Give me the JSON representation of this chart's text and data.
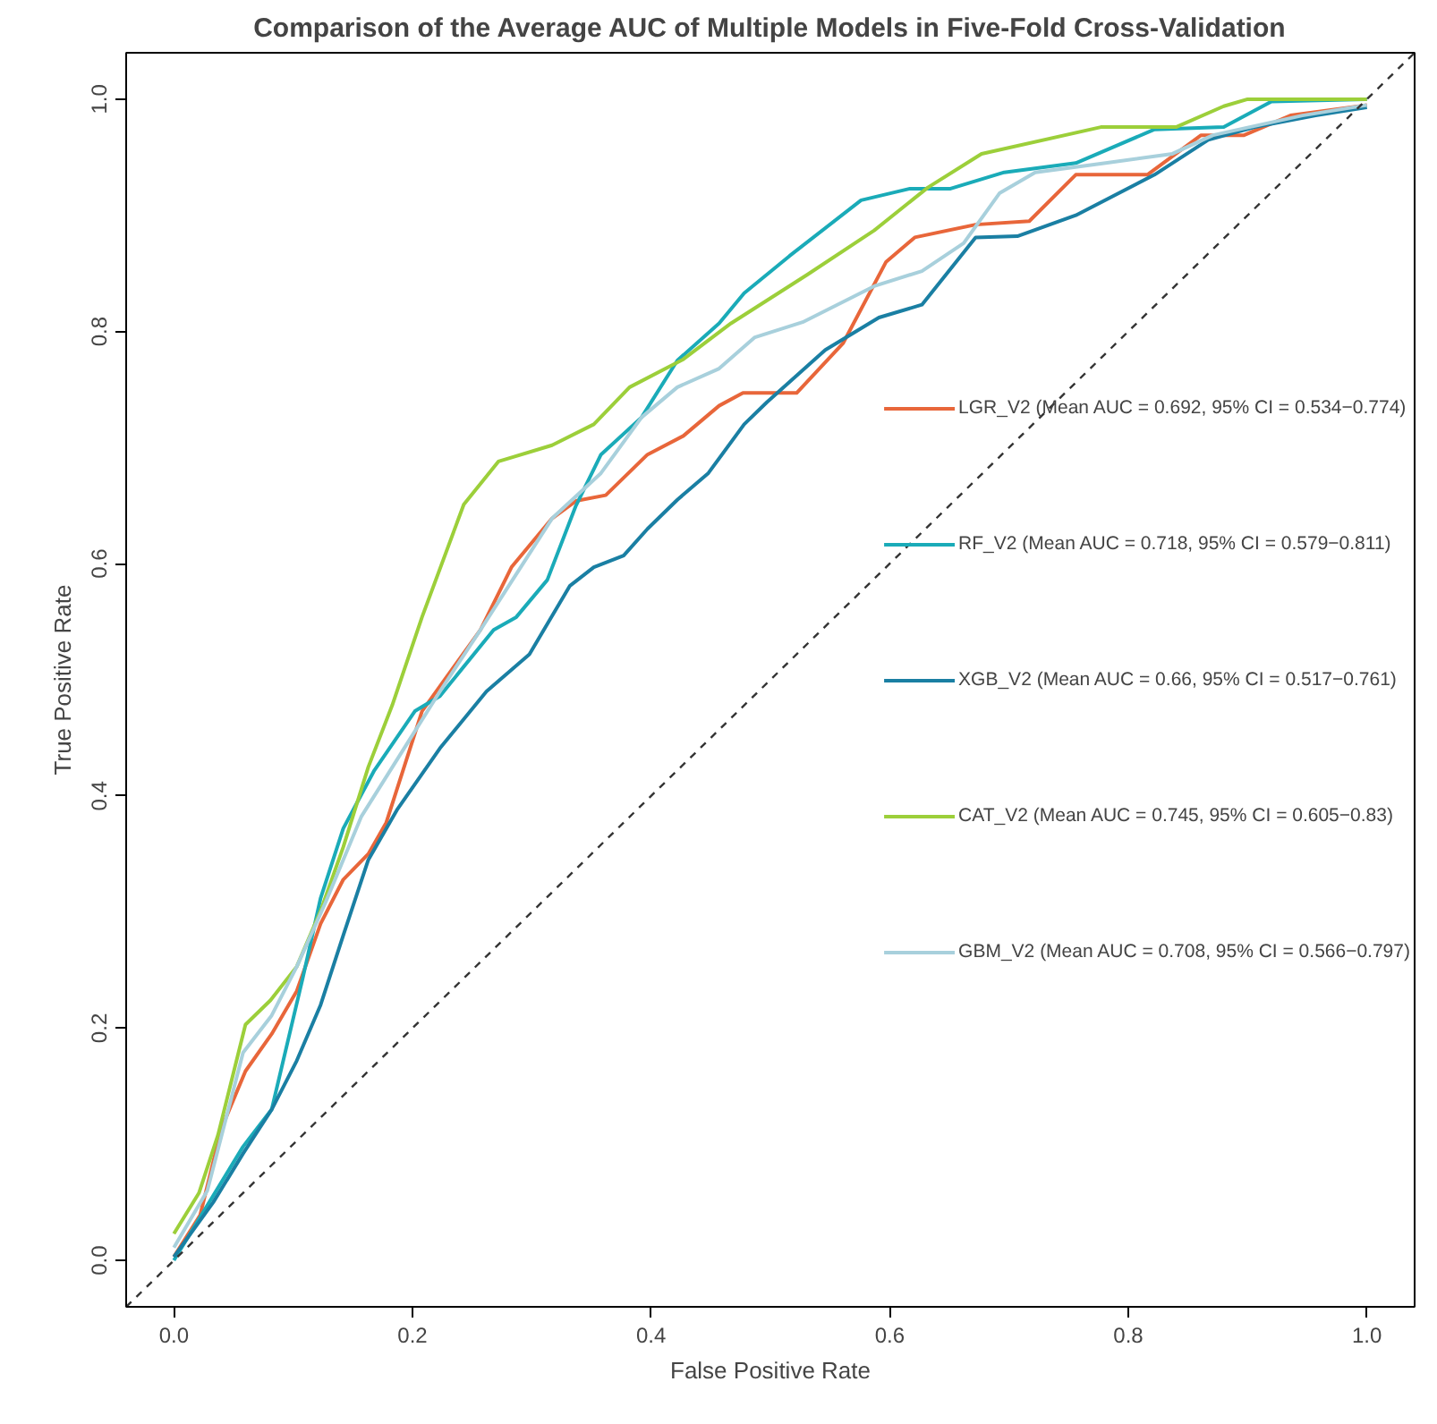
{
  "chart_data": {
    "type": "line",
    "title": "Comparison of the Average AUC of Multiple Models in Five-Fold Cross-Validation",
    "xlabel": "False Positive Rate",
    "ylabel": "True Positive Rate",
    "xlim": [
      -0.04,
      1.04
    ],
    "ylim": [
      -0.04,
      1.04
    ],
    "xticks": [
      {
        "value": 0,
        "label": "0.0"
      },
      0.2,
      0.4,
      0.6,
      0.8,
      {
        "value": 1,
        "label": "1.0"
      }
    ],
    "yticks": [
      {
        "value": 0,
        "label": "0.0"
      },
      0.2,
      0.4,
      0.6,
      0.8,
      {
        "value": 1,
        "label": "1.0"
      }
    ],
    "grid": false,
    "legend": "right",
    "line_style": "solid",
    "series": [
      {
        "name": "LGR_V2 (Mean AUC = 0.692, 95% CI = 0.534−0.774)",
        "color": "#e8663a",
        "x": [
          0,
          0.022,
          0.04,
          0.06,
          0.082,
          0.103,
          0.123,
          0.142,
          0.163,
          0.178,
          0.193,
          0.208,
          0.257,
          0.283,
          0.317,
          0.337,
          0.362,
          0.397,
          0.427,
          0.457,
          0.477,
          0.522,
          0.561,
          0.597,
          0.621,
          0.672,
          0.717,
          0.756,
          0.816,
          0.861,
          0.897,
          0.936,
          1
        ],
        "values": [
          0.003,
          0.039,
          0.114,
          0.163,
          0.195,
          0.232,
          0.29,
          0.328,
          0.35,
          0.377,
          0.425,
          0.473,
          0.543,
          0.597,
          0.639,
          0.654,
          0.659,
          0.694,
          0.71,
          0.736,
          0.747,
          0.747,
          0.79,
          0.86,
          0.881,
          0.892,
          0.895,
          0.935,
          0.935,
          0.969,
          0.969,
          0.986,
          0.995
        ]
      },
      {
        "name": "RF_V2 (Mean AUC = 0.718, 95% CI = 0.579−0.811)",
        "color": "#1aabb8",
        "x": [
          0,
          0.058,
          0.082,
          0.108,
          0.123,
          0.142,
          0.168,
          0.202,
          0.223,
          0.268,
          0.287,
          0.313,
          0.337,
          0.358,
          0.392,
          0.422,
          0.457,
          0.478,
          0.516,
          0.576,
          0.617,
          0.651,
          0.696,
          0.756,
          0.822,
          0.88,
          0.92,
          1
        ],
        "values": [
          0.0,
          0.098,
          0.13,
          0.243,
          0.312,
          0.372,
          0.422,
          0.473,
          0.486,
          0.543,
          0.554,
          0.586,
          0.65,
          0.694,
          0.726,
          0.775,
          0.807,
          0.833,
          0.865,
          0.913,
          0.923,
          0.923,
          0.937,
          0.945,
          0.974,
          0.976,
          0.998,
          1.0
        ]
      },
      {
        "name": "XGB_V2 (Mean AUC = 0.66, 95% CI = 0.517−0.761)",
        "color": "#1a7fa3",
        "x": [
          0,
          0.033,
          0.058,
          0.082,
          0.103,
          0.123,
          0.142,
          0.163,
          0.187,
          0.223,
          0.262,
          0.298,
          0.332,
          0.352,
          0.377,
          0.397,
          0.422,
          0.448,
          0.478,
          0.497,
          0.546,
          0.591,
          0.627,
          0.672,
          0.707,
          0.756,
          0.822,
          0.867,
          0.906,
          0.957,
          1
        ],
        "values": [
          0.003,
          0.05,
          0.092,
          0.13,
          0.172,
          0.22,
          0.28,
          0.345,
          0.388,
          0.441,
          0.49,
          0.522,
          0.581,
          0.597,
          0.607,
          0.63,
          0.655,
          0.678,
          0.72,
          0.739,
          0.784,
          0.812,
          0.823,
          0.881,
          0.882,
          0.9,
          0.935,
          0.965,
          0.976,
          0.986,
          0.993
        ]
      },
      {
        "name": "CAT_V2 (Mean AUC = 0.745, 95% CI = 0.605−0.83)",
        "color": "#9ccf3a",
        "x": [
          0,
          0.021,
          0.037,
          0.06,
          0.081,
          0.103,
          0.123,
          0.142,
          0.163,
          0.183,
          0.208,
          0.243,
          0.272,
          0.317,
          0.352,
          0.382,
          0.427,
          0.467,
          0.531,
          0.587,
          0.632,
          0.677,
          0.777,
          0.84,
          0.88,
          0.9,
          1
        ],
        "values": [
          0.023,
          0.058,
          0.108,
          0.203,
          0.224,
          0.253,
          0.301,
          0.356,
          0.425,
          0.478,
          0.554,
          0.651,
          0.688,
          0.702,
          0.72,
          0.752,
          0.776,
          0.807,
          0.849,
          0.887,
          0.924,
          0.953,
          0.976,
          0.976,
          0.994,
          1.0,
          1.0
        ]
      },
      {
        "name": "GBM_V2 (Mean AUC = 0.708, 95% CI = 0.566−0.797)",
        "color": "#a8d0dc",
        "x": [
          0,
          0.028,
          0.058,
          0.082,
          0.103,
          0.127,
          0.157,
          0.193,
          0.223,
          0.257,
          0.317,
          0.358,
          0.392,
          0.422,
          0.457,
          0.487,
          0.527,
          0.587,
          0.627,
          0.662,
          0.692,
          0.722,
          0.781,
          0.837,
          0.871,
          0.946,
          1
        ],
        "values": [
          0.011,
          0.06,
          0.179,
          0.211,
          0.253,
          0.308,
          0.382,
          0.441,
          0.49,
          0.543,
          0.639,
          0.678,
          0.726,
          0.752,
          0.768,
          0.795,
          0.808,
          0.839,
          0.852,
          0.876,
          0.919,
          0.937,
          0.945,
          0.953,
          0.969,
          0.986,
          0.995
        ]
      },
      {
        "color": "#333333",
        "line_style": "dashed",
        "x": [
          -0.04,
          1.04
        ],
        "values": [
          -0.04,
          1.04
        ]
      }
    ]
  }
}
